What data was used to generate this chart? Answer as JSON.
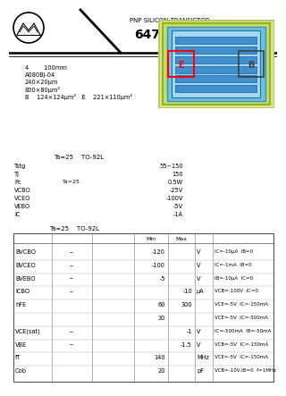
{
  "title": "647A",
  "subtitle": "PNP SILICON TRANSISTOR",
  "bg_color": "#ffffff",
  "header_info": [
    "4        100mm",
    "A080BJ-04",
    "240×20μm",
    "800×80μm²",
    "B    124×124μm²   E    221×110μm²"
  ],
  "abs_header": "Ta=25    TO-92L",
  "abs_rows": [
    [
      "Tstg",
      "",
      "55~150"
    ],
    [
      "Tj",
      "",
      "150"
    ],
    [
      "Pc",
      "Ta=25",
      "0.5W"
    ],
    [
      "VCBO",
      "",
      "-25V"
    ],
    [
      "VCEO",
      "",
      "-100V"
    ],
    [
      "VEBO",
      "",
      "-5V"
    ],
    [
      "IC",
      "",
      "-1A"
    ]
  ],
  "table2_header": "Ta=25    TO-92L",
  "table2_rows": [
    [
      "BVCBO",
      "--",
      "",
      "-120",
      "",
      "V",
      "IC=-10μA  IB=0"
    ],
    [
      "BVCEO",
      "--",
      "",
      "-100",
      "",
      "V",
      "IC=-1mA  IB=0"
    ],
    [
      "BVEBO",
      "--",
      "",
      "-5",
      "",
      "V",
      "IB=-10μA  IC=0"
    ],
    [
      "ICBO",
      "--",
      "",
      "",
      "-10",
      "μA",
      "VCB=-100V  IC=0"
    ],
    [
      "hFE",
      "",
      "",
      "60",
      "300",
      "",
      "VCE=-5V  IC=-150mA"
    ],
    [
      "",
      "",
      "",
      "30",
      "",
      "",
      "VCE=-5V  IC=-500mA"
    ],
    [
      "VCE(sat)",
      "--",
      "",
      "",
      "-1",
      "V",
      "IC=-500mA  IB=-50mA"
    ],
    [
      "VBE",
      "--",
      "",
      "",
      "-1.5",
      "V",
      "VCB=-5V  IC=-150mA"
    ],
    [
      "fT",
      "",
      "",
      "140",
      "",
      "MHz",
      "VCE=-5V  IC=-150mA"
    ],
    [
      "Cob",
      "",
      "",
      "20",
      "",
      "pF",
      "VCB=-10V,IB=0  f=1MHz"
    ]
  ]
}
